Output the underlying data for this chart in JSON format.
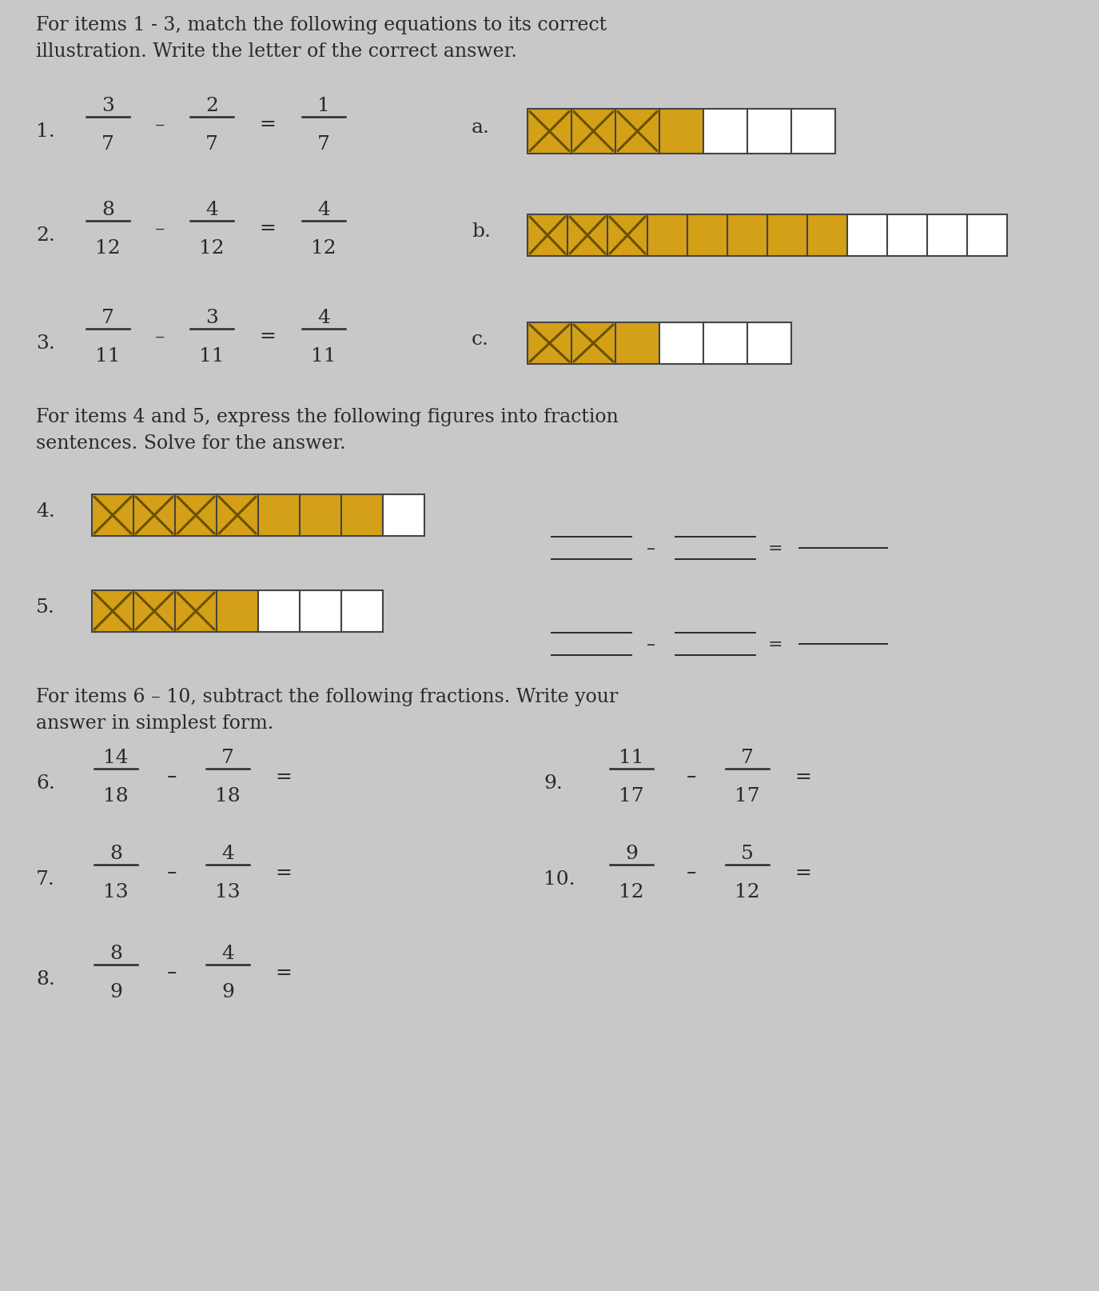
{
  "bg_color": "#c8c8c8",
  "text_color": "#2a2a2a",
  "title1": "For items 1 - 3, match the following equations to its correct\nillustration. Write the letter of the correct answer.",
  "title2": "For items 4 and 5, express the following figures into fraction\nsentences. Solve for the answer.",
  "title3": "For items 6 – 10, subtract the following fractions. Write your\nanswer in simplest form.",
  "equations": [
    {
      "num": "1.",
      "frac1_n": "3",
      "frac1_d": "7",
      "frac2_n": "2",
      "frac2_d": "7",
      "frac3_n": "1",
      "frac3_d": "7",
      "label": "a."
    },
    {
      "num": "2.",
      "frac1_n": "8",
      "frac1_d": "12",
      "frac2_n": "4",
      "frac2_d": "12",
      "frac3_n": "4",
      "frac3_d": "12",
      "label": "b."
    },
    {
      "num": "3.",
      "frac1_n": "7",
      "frac1_d": "11",
      "frac2_n": "3",
      "frac2_d": "11",
      "frac3_n": "4",
      "frac3_d": "11",
      "label": "c."
    }
  ],
  "bars": [
    {
      "total": 7,
      "crossed": 3,
      "yellow": 1,
      "white": 3,
      "cw": 0.55,
      "ch": 0.55
    },
    {
      "total": 12,
      "crossed": 3,
      "yellow": 5,
      "white": 4,
      "cw": 0.5,
      "ch": 0.52
    },
    {
      "total": 6,
      "crossed": 2,
      "yellow": 1,
      "white": 3,
      "cw": 0.55,
      "ch": 0.52
    }
  ],
  "bars45": [
    {
      "total": 8,
      "crossed": 4,
      "yellow": 3,
      "white": 1,
      "cw": 0.52,
      "ch": 0.52
    },
    {
      "total": 7,
      "crossed": 3,
      "yellow": 1,
      "white": 3,
      "cw": 0.52,
      "ch": 0.52
    }
  ],
  "problems_left": [
    {
      "num": "6.",
      "frac1_n": "14",
      "frac1_d": "18",
      "frac2_n": "7",
      "frac2_d": "18"
    },
    {
      "num": "7.",
      "frac1_n": "8",
      "frac1_d": "13",
      "frac2_n": "4",
      "frac2_d": "13"
    },
    {
      "num": "8.",
      "frac1_n": "8",
      "frac1_d": "9",
      "frac2_n": "4",
      "frac2_d": "9"
    }
  ],
  "problems_right": [
    {
      "num": "9.",
      "frac1_n": "11",
      "frac1_d": "17",
      "frac2_n": "7",
      "frac2_d": "17"
    },
    {
      "num": "10.",
      "frac1_n": "9",
      "frac1_d": "12",
      "frac2_n": "5",
      "frac2_d": "12"
    }
  ],
  "yellow": "#d4a017",
  "cross_color": "#6b5000",
  "bar_border": "#444444"
}
